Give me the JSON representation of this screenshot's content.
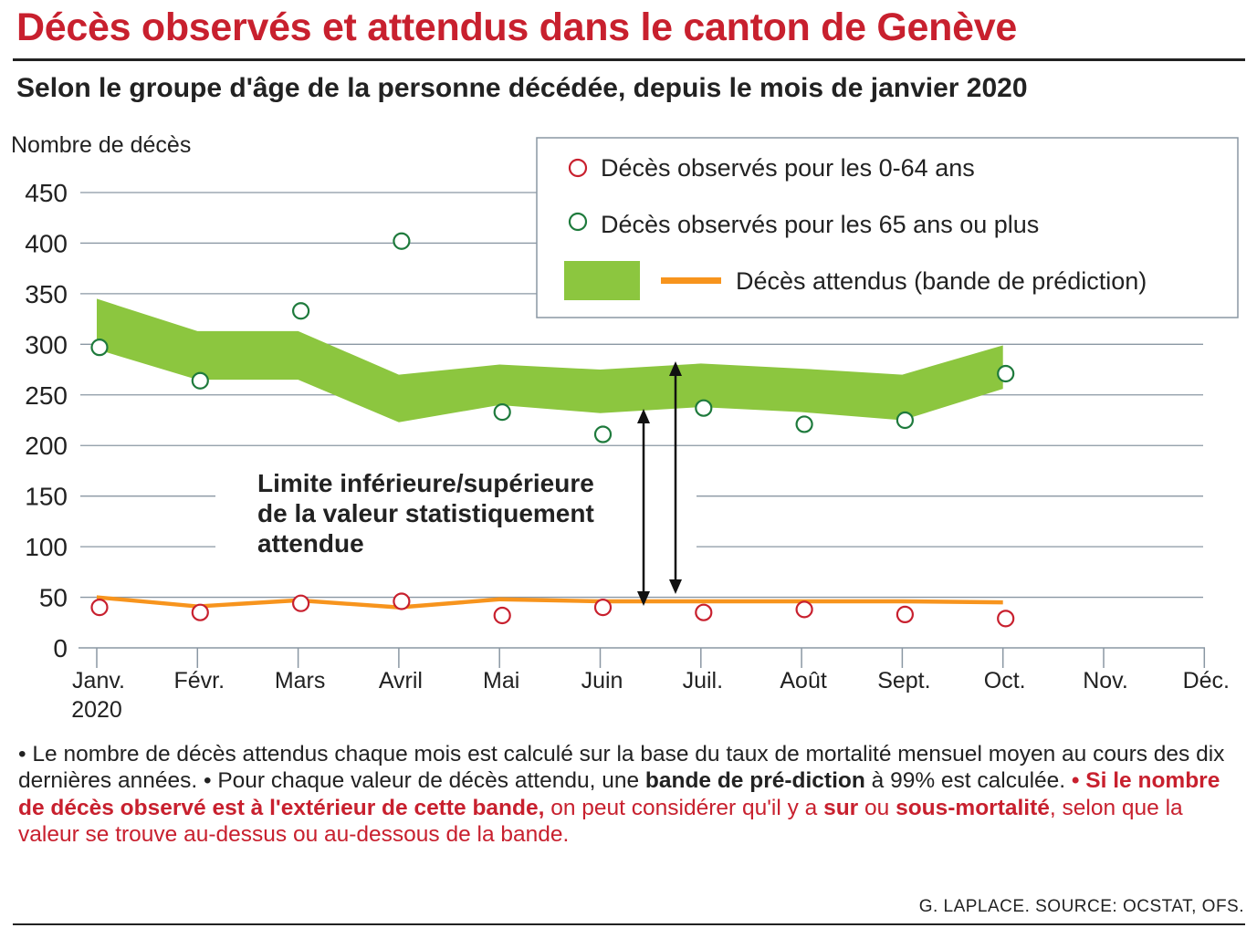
{
  "title": "Décès observés et attendus dans le canton de Genève",
  "subtitle": "Selon le groupe d'âge de la personne décédée, depuis le mois de janvier 2020",
  "chart_data": {
    "type": "scatter",
    "ylabel": "Nombre de décès",
    "ylim": [
      0,
      450
    ],
    "yticks": [
      0,
      50,
      100,
      150,
      200,
      250,
      300,
      350,
      400,
      450
    ],
    "categories": [
      "Janv.",
      "Févr.",
      "Mars",
      "Avril",
      "Mai",
      "Juin",
      "Juil.",
      "Août",
      "Sept.",
      "Oct.",
      "Nov.",
      "Déc."
    ],
    "year_label": "2020",
    "grid": true,
    "legend_position": "top-right",
    "series": [
      {
        "name": "Décès observés pour les 0-64 ans",
        "kind": "points",
        "color": "#c8202e",
        "values": [
          40,
          35,
          44,
          46,
          32,
          40,
          35,
          38,
          33,
          29,
          null,
          null
        ]
      },
      {
        "name": "Décès observés pour les 65 ans ou plus",
        "kind": "points",
        "color": "#1e7a3c",
        "values": [
          297,
          264,
          333,
          402,
          233,
          211,
          237,
          221,
          225,
          271,
          null,
          null
        ]
      }
    ],
    "band": {
      "name": "Décès attendus (bande de prédiction)",
      "color": "#8cc63f",
      "upper_65plus": [
        345,
        313,
        313,
        270,
        280,
        275,
        281,
        276,
        270,
        299,
        null,
        null
      ],
      "lower_65plus": [
        295,
        265,
        265,
        223,
        240,
        232,
        238,
        233,
        225,
        256,
        null,
        null
      ],
      "upper_0_64": [
        52,
        43,
        49,
        42,
        50,
        48,
        48,
        48,
        48,
        47,
        null,
        null
      ],
      "lower_0_64": [
        48,
        39,
        45,
        38,
        46,
        44,
        44,
        44,
        44,
        43,
        null,
        null
      ]
    },
    "expected_line_color": "#f7941d",
    "annotation": {
      "lines": [
        "Limite inférieure/supérieure",
        "de la valeur statistiquement",
        "attendue"
      ]
    }
  },
  "notes": {
    "p1": "• Le nombre de décès attendus chaque mois est calculé sur la base du taux de mortalité mensuel moyen au cours des dix dernières années. • Pour chaque valeur de décès attendu, une ",
    "b1": "bande de pré-diction",
    "p2": " à 99% est calculée. ",
    "r1": "• Si le nombre de décès observé est à l'extérieur de cette bande,",
    "p3": " on peut considérer qu'il y a ",
    "r2": "sur",
    "p4": " ou ",
    "r3": "sous-mortalité",
    "p5": ", selon que la valeur se trouve au-dessus ou au-dessous de la bande."
  },
  "source": "G. LAPLACE. SOURCE: OCSTAT, OFS."
}
